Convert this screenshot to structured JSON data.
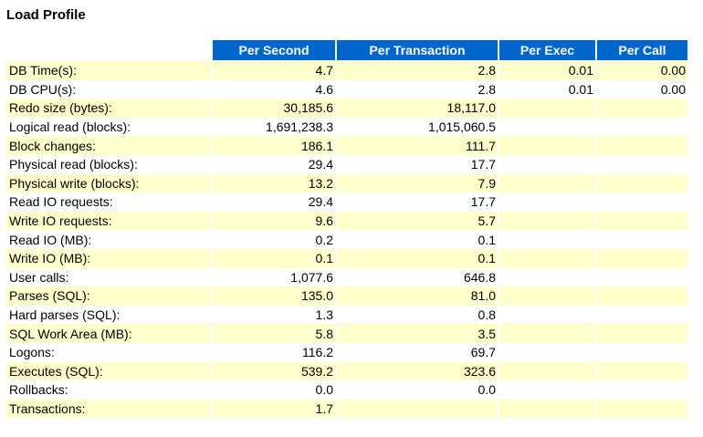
{
  "page": {
    "title": "Load Profile"
  },
  "table": {
    "columns": [
      "",
      "Per Second",
      "Per Transaction",
      "Per Exec",
      "Per Call"
    ],
    "rows": [
      [
        "DB Time(s):",
        "4.7",
        "2.8",
        "0.01",
        "0.00"
      ],
      [
        "DB CPU(s):",
        "4.6",
        "2.8",
        "0.01",
        "0.00"
      ],
      [
        "Redo size (bytes):",
        "30,185.6",
        "18,117.0",
        "",
        ""
      ],
      [
        "Logical read (blocks):",
        "1,691,238.3",
        "1,015,060.5",
        "",
        ""
      ],
      [
        "Block changes:",
        "186.1",
        "111.7",
        "",
        ""
      ],
      [
        "Physical read (blocks):",
        "29.4",
        "17.7",
        "",
        ""
      ],
      [
        "Physical write (blocks):",
        "13.2",
        "7.9",
        "",
        ""
      ],
      [
        "Read IO requests:",
        "29.4",
        "17.7",
        "",
        ""
      ],
      [
        "Write IO requests:",
        "9.6",
        "5.7",
        "",
        ""
      ],
      [
        "Read IO (MB):",
        "0.2",
        "0.1",
        "",
        ""
      ],
      [
        "Write IO (MB):",
        "0.1",
        "0.1",
        "",
        ""
      ],
      [
        "User calls:",
        "1,077.6",
        "646.8",
        "",
        ""
      ],
      [
        "Parses (SQL):",
        "135.0",
        "81.0",
        "",
        ""
      ],
      [
        "Hard parses (SQL):",
        "1.3",
        "0.8",
        "",
        ""
      ],
      [
        "SQL Work Area (MB):",
        "5.8",
        "3.5",
        "",
        ""
      ],
      [
        "Logons:",
        "116.2",
        "69.7",
        "",
        ""
      ],
      [
        "Executes (SQL):",
        "539.2",
        "323.6",
        "",
        ""
      ],
      [
        "Rollbacks:",
        "0.0",
        "0.0",
        "",
        ""
      ],
      [
        "Transactions:",
        "1.7",
        "",
        "",
        ""
      ]
    ]
  },
  "colors": {
    "header_bg": "#0066cc",
    "header_text": "#ffffff",
    "row_highlight": "#ffffcc",
    "row_plain": "#ffffff"
  }
}
